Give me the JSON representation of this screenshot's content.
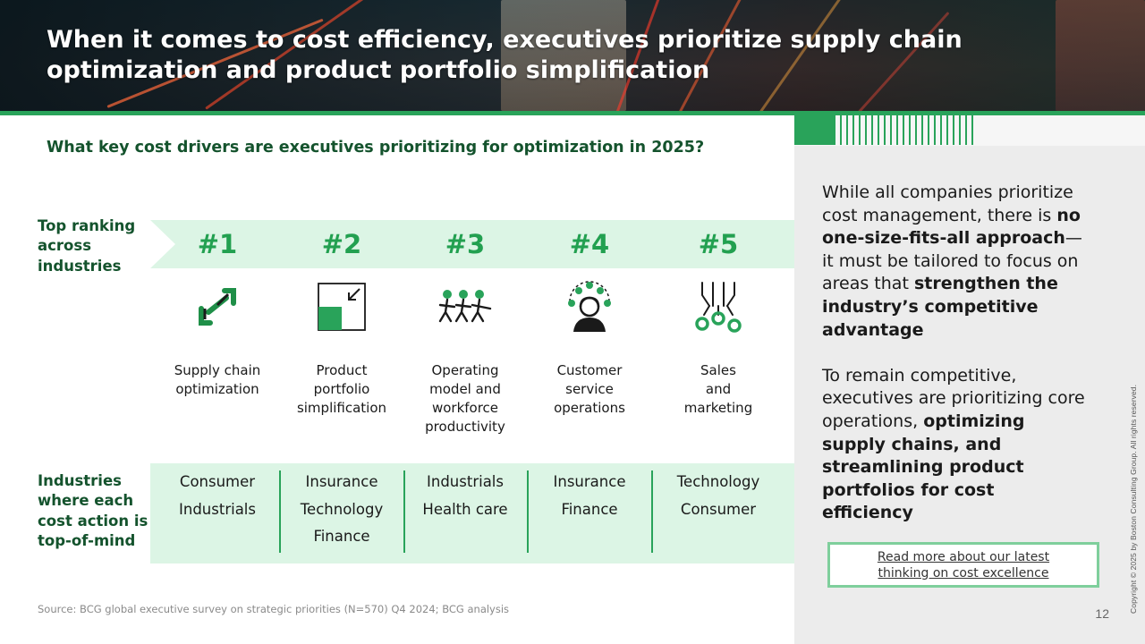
{
  "header": {
    "title_line1": "When it comes to cost efficiency, executives prioritize supply chain",
    "title_line2": "optimization and product portfolio simplification"
  },
  "subtitle": "What key cost drivers are executives prioritizing for optimization in 2025?",
  "labels": {
    "top_ranking": [
      "Top ranking",
      "across",
      "industries"
    ],
    "industries": [
      "Industries",
      "where each",
      "cost action is",
      "top-of-mind"
    ]
  },
  "columns": [
    {
      "rank": "#1",
      "icon": "chain-link-icon",
      "label": [
        "Supply chain",
        "optimization"
      ],
      "industries": [
        "Consumer",
        "Industrials"
      ]
    },
    {
      "rank": "#2",
      "icon": "shrink-square-icon",
      "label": [
        "Product",
        "portfolio",
        "simplification"
      ],
      "industries": [
        "Insurance",
        "Technology",
        "Finance"
      ]
    },
    {
      "rank": "#3",
      "icon": "workforce-group-icon",
      "label": [
        "Operating",
        "model and",
        "workforce",
        "productivity"
      ],
      "industries": [
        "Industrials",
        "Health care"
      ]
    },
    {
      "rank": "#4",
      "icon": "customer-service-icon",
      "label": [
        "Customer",
        "service",
        "operations"
      ],
      "industries": [
        "Insurance",
        "Finance"
      ]
    },
    {
      "rank": "#5",
      "icon": "sales-funnel-icon",
      "label": [
        "Sales",
        "and",
        "marketing"
      ],
      "industries": [
        "Technology",
        "Consumer"
      ]
    }
  ],
  "panel": {
    "p1_a": "While all companies prioritize cost management, there is ",
    "p1_b": "no one-size-fits-all approach",
    "p1_c": "—it must be tailored to focus on areas that ",
    "p1_d": "strengthen the industry’s competitive advantage",
    "p2_a": "To remain competitive, executives are prioritizing core operations, ",
    "p2_b": "optimizing supply chains, and streamlining product portfolios for cost efficiency",
    "read_more": "Read more about our latest thinking on cost excellence"
  },
  "source": "Source: BCG global executive survey on strategic priorities (N=570) Q4 2024; BCG analysis",
  "page_number": "12",
  "copyright": "Copyright © 2025 by Boston Consulting Group. All rights reserved.",
  "colors": {
    "accent_green": "#29a35a",
    "dark_green": "#14532d",
    "light_green": "#dcf5e5"
  }
}
